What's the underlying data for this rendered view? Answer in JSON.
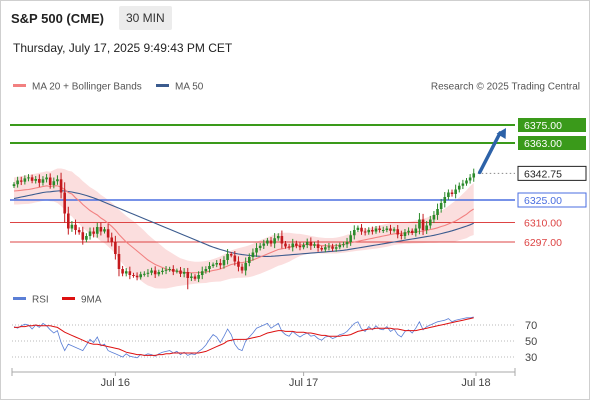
{
  "header": {
    "symbol": "S&P 500 (CME)",
    "interval": "30 MIN",
    "datetime": "Thursday, July 17, 2025 9:49:43 PM CET"
  },
  "legend": {
    "ma20": "MA 20 + Bollinger Bands",
    "ma50": "MA 50",
    "ma20_color": "#f28080",
    "ma50_color": "#3b5b8e",
    "credit": "Research © 2025 Trading Central"
  },
  "rsi_legend": {
    "rsi": "RSI",
    "ma9": "9MA",
    "rsi_color": "#5b7fd6",
    "ma9_color": "#dd1111"
  },
  "colors": {
    "up": "#2a8a2a",
    "down": "#c4191d",
    "target": "#3a9a1a",
    "pivot": "#4a6ee0",
    "support": "#dd4444",
    "current": "#222222",
    "band_fill": "#fbdede",
    "arrow": "#2d62a8"
  },
  "chart_data": [
    {
      "type": "candlestick",
      "ylim": [
        6265,
        6395
      ],
      "levels": [
        {
          "value": 6375.0,
          "label": "6375.00",
          "kind": "target"
        },
        {
          "value": 6363.0,
          "label": "6363.00",
          "kind": "target"
        },
        {
          "value": 6342.75,
          "label": "6342.75",
          "kind": "current"
        },
        {
          "value": 6325.0,
          "label": "6325.00",
          "kind": "pivot"
        },
        {
          "value": 6310.0,
          "label": "6310.00",
          "kind": "support"
        },
        {
          "value": 6297.0,
          "label": "6297.00",
          "kind": "support"
        }
      ],
      "x_ticks": [
        "Jul 16",
        "Jul 17",
        "Jul 18"
      ],
      "close": [
        6335.5,
        6338.0,
        6337.2,
        6339.4,
        6340.1,
        6337.8,
        6339.0,
        6336.5,
        6338.8,
        6340.0,
        6335.0,
        6337.5,
        6338.8,
        6330.0,
        6316.0,
        6306.0,
        6308.5,
        6305.0,
        6303.5,
        6298.5,
        6301.0,
        6304.0,
        6302.5,
        6307.0,
        6304.0,
        6305.5,
        6300.0,
        6297.0,
        6289.0,
        6279.0,
        6276.0,
        6277.5,
        6275.0,
        6274.5,
        6273.5,
        6275.5,
        6275.8,
        6276.5,
        6278.0,
        6275.5,
        6277.0,
        6277.8,
        6278.5,
        6279.0,
        6277.2,
        6278.0,
        6275.8,
        6277.0,
        6273.0,
        6274.0,
        6272.5,
        6275.0,
        6277.5,
        6279.0,
        6281.0,
        6282.0,
        6283.0,
        6281.5,
        6285.0,
        6289.0,
        6288.0,
        6284.0,
        6280.5,
        6278.0,
        6283.0,
        6287.0,
        6290.0,
        6293.0,
        6294.5,
        6296.0,
        6298.0,
        6296.0,
        6299.5,
        6301.0,
        6296.0,
        6294.0,
        6293.5,
        6296.0,
        6294.5,
        6293.5,
        6295.0,
        6297.0,
        6294.5,
        6295.5,
        6293.0,
        6292.0,
        6293.5,
        6294.0,
        6292.5,
        6293.5,
        6295.0,
        6295.5,
        6297.0,
        6301.5,
        6305.0,
        6306.5,
        6304.0,
        6303.5,
        6305.0,
        6304.0,
        6306.0,
        6305.0,
        6305.0,
        6306.0,
        6304.5,
        6305.5,
        6302.0,
        6301.0,
        6303.5,
        6304.5,
        6303.0,
        6306.0,
        6312.0,
        6305.0,
        6308.0,
        6312.0,
        6315.0,
        6319.0,
        6323.0,
        6327.0,
        6330.0,
        6329.0,
        6332.0,
        6334.5,
        6336.0,
        6338.0,
        6340.0,
        6342.75
      ],
      "ma20": [
        6331.0,
        6331.2,
        6331.5,
        6331.8,
        6332.0,
        6332.5,
        6333.0,
        6333.5,
        6334.0,
        6334.5,
        6334.0,
        6334.5,
        6334.5,
        6333.5,
        6332.0,
        6330.0,
        6329.0,
        6326.5,
        6324.5,
        6322.0,
        6320.0,
        6318.0,
        6316.5,
        6315.0,
        6313.0,
        6311.5,
        6309.5,
        6307.5,
        6305.0,
        6302.0,
        6299.5,
        6297.0,
        6295.0,
        6293.0,
        6291.0,
        6289.0,
        6287.0,
        6285.0,
        6283.5,
        6282.0,
        6281.0,
        6280.0,
        6279.0,
        6278.5,
        6278.0,
        6277.5,
        6277.0,
        6276.8,
        6276.6,
        6276.5,
        6276.5,
        6276.6,
        6276.8,
        6277.0,
        6277.5,
        6278.0,
        6278.5,
        6279.0,
        6280.0,
        6281.0,
        6282.0,
        6282.5,
        6283.0,
        6283.3,
        6283.7,
        6284.2,
        6285.0,
        6286.0,
        6287.0,
        6288.0,
        6289.0,
        6290.0,
        6291.0,
        6292.0,
        6292.5,
        6293.0,
        6293.5,
        6294.0,
        6294.5,
        6295.0,
        6295.2,
        6295.3,
        6295.2,
        6295.0,
        6294.8,
        6294.6,
        6294.5,
        6294.5,
        6294.5,
        6294.6,
        6295.0,
        6295.4,
        6296.0,
        6296.5,
        6297.0,
        6297.5,
        6298.0,
        6298.5,
        6299.0,
        6299.5,
        6300.0,
        6300.5,
        6301.0,
        6301.5,
        6302.0,
        6302.5,
        6302.7,
        6302.8,
        6303.0,
        6303.2,
        6303.4,
        6303.7,
        6304.0,
        6304.4,
        6304.8,
        6305.3,
        6305.8,
        6306.5,
        6307.3,
        6308.0,
        6309.0,
        6310.0,
        6311.0,
        6312.5,
        6314.0,
        6315.5,
        6317.5,
        6319.0
      ],
      "ma50": [
        6326.0,
        6326.5,
        6327.0,
        6327.5,
        6328.0,
        6328.5,
        6329.0,
        6329.5,
        6330.0,
        6330.3,
        6330.5,
        6330.8,
        6331.0,
        6331.2,
        6331.0,
        6330.7,
        6330.3,
        6329.8,
        6329.3,
        6328.7,
        6328.0,
        6327.2,
        6326.4,
        6325.5,
        6324.5,
        6323.5,
        6322.5,
        6321.5,
        6320.5,
        6319.5,
        6318.5,
        6317.5,
        6316.5,
        6315.5,
        6314.5,
        6313.5,
        6312.5,
        6311.5,
        6310.5,
        6309.5,
        6308.5,
        6307.5,
        6306.5,
        6305.5,
        6304.5,
        6303.5,
        6302.5,
        6301.5,
        6300.5,
        6299.5,
        6298.5,
        6297.5,
        6296.5,
        6295.5,
        6294.5,
        6293.6,
        6292.8,
        6292.0,
        6291.3,
        6290.6,
        6290.0,
        6289.5,
        6289.0,
        6288.6,
        6288.3,
        6288.0,
        6287.8,
        6287.6,
        6287.5,
        6287.4,
        6287.4,
        6287.5,
        6287.6,
        6287.8,
        6288.0,
        6288.2,
        6288.4,
        6288.6,
        6288.8,
        6289.0,
        6289.2,
        6289.4,
        6289.6,
        6289.8,
        6290.0,
        6290.2,
        6290.4,
        6290.6,
        6290.8,
        6291.0,
        6291.2,
        6291.5,
        6291.8,
        6292.2,
        6292.6,
        6293.0,
        6293.4,
        6293.8,
        6294.2,
        6294.6,
        6295.0,
        6295.4,
        6295.8,
        6296.2,
        6296.6,
        6297.0,
        6297.4,
        6297.8,
        6298.2,
        6298.6,
        6299.0,
        6299.4,
        6299.8,
        6300.2,
        6300.6,
        6301.0,
        6301.5,
        6302.0,
        6302.6,
        6303.2,
        6303.8,
        6304.5,
        6305.2,
        6306.0,
        6306.8,
        6307.6,
        6308.5,
        6309.5
      ],
      "bb_width": [
        9.0,
        9.2,
        9.4,
        9.5,
        9.6,
        9.6,
        9.6,
        9.6,
        9.6,
        9.6,
        9.8,
        10.5,
        11.5,
        12.5,
        13.5,
        14.5,
        15.0,
        15.3,
        15.5,
        15.6,
        15.6,
        15.6,
        15.6,
        15.5,
        15.4,
        15.4,
        15.5,
        15.7,
        16.0,
        16.5,
        17.0,
        17.4,
        17.6,
        17.8,
        17.8,
        17.7,
        17.5,
        17.0,
        16.4,
        15.8,
        15.0,
        14.0,
        13.0,
        12.0,
        11.0,
        10.0,
        9.2,
        8.6,
        8.0,
        7.6,
        7.3,
        7.2,
        7.2,
        7.3,
        7.4,
        7.6,
        7.9,
        8.3,
        8.7,
        9.0,
        9.3,
        9.6,
        9.9,
        10.2,
        10.4,
        10.6,
        10.8,
        11.0,
        11.1,
        11.2,
        11.2,
        11.1,
        11.0,
        10.8,
        10.6,
        10.2,
        9.6,
        8.8,
        8.0,
        7.4,
        6.8,
        6.3,
        5.9,
        5.6,
        5.4,
        5.3,
        5.2,
        5.2,
        5.2,
        5.3,
        5.4,
        5.6,
        5.8,
        6.0,
        6.2,
        6.4,
        6.6,
        6.8,
        7.0,
        7.2,
        7.4,
        7.5,
        7.6,
        7.6,
        7.6,
        7.5,
        7.4,
        7.3,
        7.2,
        7.3,
        7.4,
        7.6,
        7.8,
        8.1,
        8.4,
        8.8,
        9.3,
        9.9,
        10.5,
        11.2,
        12.0,
        12.8,
        13.6,
        14.4,
        15.2,
        16.0,
        16.7,
        17.3
      ],
      "rsi_ylim": [
        15,
        85
      ],
      "rsi_ticks": [
        70,
        50,
        30
      ],
      "rsi": [
        68,
        66,
        69,
        71,
        70,
        65,
        70,
        67,
        72,
        69,
        64,
        60,
        63,
        48,
        38,
        46,
        44,
        42,
        40,
        38,
        45,
        52,
        48,
        55,
        44,
        46,
        38,
        36,
        34,
        32,
        30,
        34,
        31,
        30,
        29,
        33,
        32,
        34,
        33,
        31,
        34,
        36,
        37,
        38,
        35,
        37,
        33,
        36,
        32,
        34,
        33,
        37,
        40,
        45,
        52,
        58,
        55,
        48,
        56,
        65,
        58,
        46,
        40,
        38,
        50,
        55,
        60,
        66,
        68,
        70,
        72,
        66,
        69,
        72,
        62,
        58,
        56,
        62,
        58,
        55,
        58,
        60,
        56,
        57,
        53,
        51,
        55,
        56,
        53,
        55,
        58,
        59,
        62,
        67,
        72,
        74,
        65,
        62,
        68,
        64,
        69,
        65,
        64,
        68,
        62,
        65,
        58,
        55,
        62,
        64,
        60,
        66,
        74,
        64,
        68,
        70,
        72,
        74,
        75,
        76,
        78,
        74,
        76,
        77,
        78,
        79,
        79,
        80
      ],
      "rsi_ma9": [
        67,
        67,
        68,
        68,
        69,
        69,
        70,
        69,
        69,
        69,
        69,
        68,
        67,
        64,
        61,
        59,
        57,
        55,
        53,
        51,
        49,
        47,
        46,
        46,
        45,
        44,
        43,
        42,
        41,
        40,
        38,
        36,
        35,
        34,
        33,
        33,
        32,
        32,
        32,
        32,
        33,
        33,
        34,
        34,
        35,
        35,
        35,
        35,
        35,
        35,
        35,
        35,
        36,
        37,
        39,
        41,
        43,
        45,
        47,
        50,
        51,
        52,
        52,
        52,
        52,
        53,
        54,
        55,
        56,
        58,
        60,
        61,
        62,
        63,
        63,
        62,
        62,
        62,
        61,
        61,
        61,
        60,
        60,
        59,
        58,
        57,
        57,
        56,
        56,
        56,
        56,
        57,
        57,
        58,
        60,
        62,
        63,
        64,
        65,
        65,
        66,
        66,
        66,
        66,
        66,
        65,
        65,
        64,
        63,
        63,
        63,
        63,
        64,
        65,
        66,
        67,
        68,
        69,
        70,
        71,
        72,
        73,
        74,
        75,
        76,
        77,
        78,
        79
      ]
    }
  ]
}
